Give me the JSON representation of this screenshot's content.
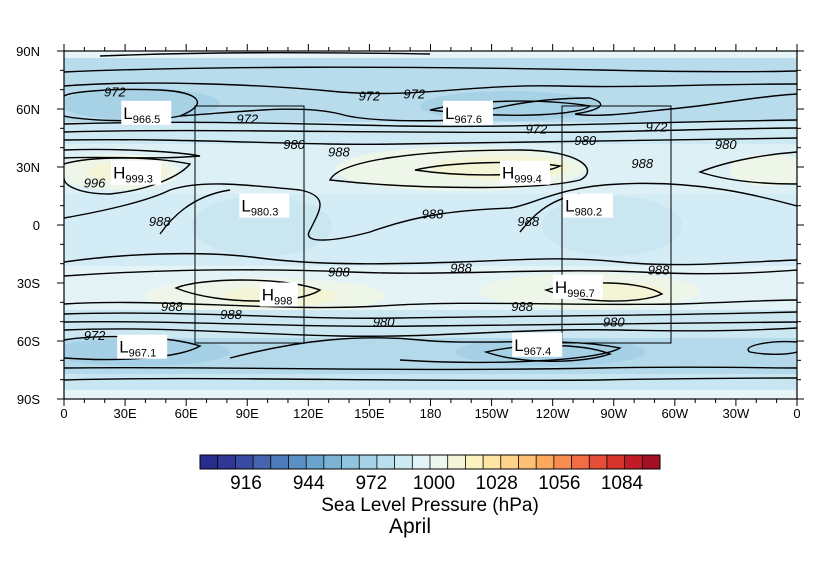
{
  "chart_data": {
    "type": "contour",
    "title": "April",
    "colorbar_title": "Sea Level Pressure (hPa)",
    "colorbar_ticks": [
      "916",
      "944",
      "972",
      "1000",
      "1028",
      "1056",
      "1084"
    ],
    "colorbar_colors": [
      "#262d8c",
      "#313795",
      "#3a4ba3",
      "#4563ae",
      "#4f7ab9",
      "#5b90c4",
      "#6aa3cd",
      "#7db4d6",
      "#91c5df",
      "#a6d3e7",
      "#badfee",
      "#cde9f3",
      "#e0f3f8",
      "#eef7ee",
      "#f5f6d8",
      "#fbf2bf",
      "#fee5a3",
      "#fed38a",
      "#fdbf73",
      "#fca95f",
      "#f88d52",
      "#f26d44",
      "#e64e38",
      "#d7332d",
      "#c21b28",
      "#a50f26"
    ],
    "x_ticks": [
      "0",
      "30E",
      "60E",
      "90E",
      "120E",
      "150E",
      "180",
      "150W",
      "120W",
      "90W",
      "60W",
      "30W",
      "0"
    ],
    "y_ticks": [
      "90N",
      "60N",
      "30N",
      "0",
      "30S",
      "60S",
      "90S"
    ],
    "x_range": [
      0,
      360
    ],
    "y_range": [
      -90,
      90
    ],
    "contour_labels": [
      {
        "text": "972",
        "lon": 25,
        "lat": 69
      },
      {
        "text": "972",
        "lon": 90,
        "lat": 55
      },
      {
        "text": "972",
        "lon": 150,
        "lat": 67
      },
      {
        "text": "972",
        "lon": 172,
        "lat": 68
      },
      {
        "text": "972",
        "lon": 232,
        "lat": 50
      },
      {
        "text": "972",
        "lon": 291,
        "lat": 51
      },
      {
        "text": "980",
        "lon": 113,
        "lat": 42
      },
      {
        "text": "980",
        "lon": 256,
        "lat": 44
      },
      {
        "text": "980",
        "lon": 325,
        "lat": 42
      },
      {
        "text": "980",
        "lon": 157,
        "lat": -50
      },
      {
        "text": "980",
        "lon": 270,
        "lat": -50
      },
      {
        "text": "988",
        "lon": 135,
        "lat": 38
      },
      {
        "text": "988",
        "lon": 284,
        "lat": 32
      },
      {
        "text": "988",
        "lon": 181,
        "lat": 6
      },
      {
        "text": "988",
        "lon": 135,
        "lat": -24
      },
      {
        "text": "988",
        "lon": 195,
        "lat": -22
      },
      {
        "text": "988",
        "lon": 292,
        "lat": -23
      },
      {
        "text": "988",
        "lon": 53,
        "lat": -42
      },
      {
        "text": "988",
        "lon": 82,
        "lat": -46
      },
      {
        "text": "988",
        "lon": 225,
        "lat": -42
      },
      {
        "text": "988",
        "lon": 47,
        "lat": 2
      },
      {
        "text": "988",
        "lon": 228,
        "lat": 2
      },
      {
        "text": "996",
        "lon": 15,
        "lat": 22
      },
      {
        "text": "972",
        "lon": 15,
        "lat": -57
      }
    ],
    "pressure_centers": [
      {
        "type": "L",
        "value": "966.5",
        "lon": 35,
        "lat": 57
      },
      {
        "type": "L",
        "value": "967.6",
        "lon": 193,
        "lat": 57
      },
      {
        "type": "H",
        "value": "999.3",
        "lon": 30,
        "lat": 26
      },
      {
        "type": "H",
        "value": "999.4",
        "lon": 221,
        "lat": 26
      },
      {
        "type": "L",
        "value": "980.3",
        "lon": 93,
        "lat": 9
      },
      {
        "type": "L",
        "value": "980.2",
        "lon": 252,
        "lat": 9
      },
      {
        "type": "H",
        "value": "998",
        "lon": 103,
        "lat": -37
      },
      {
        "type": "H",
        "value": "996.7",
        "lon": 247,
        "lat": -33
      },
      {
        "type": "L",
        "value": "967.1",
        "lon": 33,
        "lat": -64
      },
      {
        "type": "L",
        "value": "967.4",
        "lon": 227,
        "lat": -63
      }
    ]
  }
}
